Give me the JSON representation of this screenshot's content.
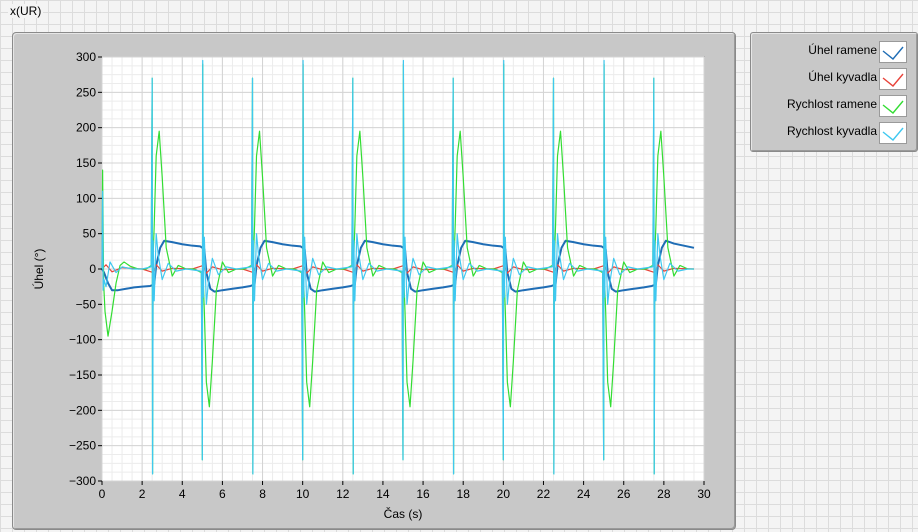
{
  "window": {
    "title": "x(UR)"
  },
  "chart_data": {
    "type": "line",
    "xlabel": "Čas (s)",
    "ylabel": "Úhel (°)",
    "xlim": [
      0,
      30
    ],
    "ylim": [
      -300,
      300
    ],
    "xticks": [
      0,
      2,
      4,
      6,
      8,
      10,
      12,
      14,
      16,
      18,
      20,
      22,
      24,
      26,
      28,
      30
    ],
    "yticks": [
      -300,
      -250,
      -200,
      -150,
      -100,
      -50,
      0,
      50,
      100,
      150,
      200,
      250,
      300
    ],
    "grid": true,
    "legend_position": "top-right",
    "series": [
      {
        "name": "Úhel ramene",
        "color": "#1f6db5",
        "x": [
          0,
          0.1,
          0.3,
          0.5,
          0.8,
          1.2,
          1.6,
          2.0,
          2.4,
          2.6,
          2.7,
          2.9,
          3.1,
          3.5,
          4.0,
          4.5,
          4.9,
          5.1,
          5.2,
          5.4,
          5.6,
          6.0,
          6.5,
          7.0,
          7.4,
          7.6,
          7.7,
          7.9,
          8.1,
          8.5,
          9.0,
          9.5,
          9.9,
          10.1,
          10.2,
          10.4,
          10.6,
          11.0,
          11.5,
          12.0,
          12.4,
          12.6,
          12.7,
          12.9,
          13.1,
          13.5,
          14.0,
          14.5,
          14.9,
          15.1,
          15.2,
          15.4,
          15.6,
          16.0,
          16.5,
          17.0,
          17.4,
          17.6,
          17.7,
          17.9,
          18.1,
          18.5,
          19.0,
          19.5,
          19.9,
          20.1,
          20.2,
          20.4,
          20.6,
          21.0,
          21.5,
          22.0,
          22.4,
          22.6,
          22.7,
          22.9,
          23.1,
          23.5,
          24.0,
          24.5,
          24.9,
          25.1,
          25.2,
          25.4,
          25.6,
          26.0,
          26.5,
          27.0,
          27.4,
          27.6,
          27.7,
          27.9,
          28.1,
          28.5,
          29.0,
          29.5
        ],
        "values": [
          0,
          -5,
          -20,
          -30,
          -30,
          -28,
          -26,
          -25,
          -24,
          -22,
          5,
          30,
          40,
          38,
          35,
          33,
          32,
          28,
          -5,
          -28,
          -32,
          -30,
          -28,
          -26,
          -24,
          -22,
          5,
          30,
          40,
          38,
          35,
          33,
          32,
          28,
          -5,
          -28,
          -32,
          -30,
          -28,
          -26,
          -24,
          -22,
          5,
          30,
          40,
          38,
          35,
          33,
          32,
          28,
          -5,
          -28,
          -32,
          -30,
          -28,
          -26,
          -24,
          -22,
          5,
          30,
          40,
          38,
          35,
          33,
          32,
          28,
          -5,
          -28,
          -32,
          -30,
          -28,
          -26,
          -24,
          -22,
          5,
          30,
          40,
          38,
          35,
          33,
          32,
          28,
          -5,
          -28,
          -32,
          -30,
          -28,
          -26,
          -24,
          -22,
          5,
          30,
          40,
          36,
          33,
          30
        ]
      },
      {
        "name": "Úhel kyvadla",
        "color": "#e8433a",
        "x": [
          0,
          0.2,
          0.5,
          1.0,
          2.0,
          2.55,
          2.7,
          3.0,
          3.5,
          4.5,
          5.05,
          5.2,
          5.5,
          6.0,
          7.0,
          7.55,
          7.7,
          8.0,
          8.5,
          9.5,
          10.05,
          10.2,
          10.5,
          11.0,
          12.0,
          12.55,
          12.7,
          13.0,
          13.5,
          14.5,
          15.05,
          15.2,
          15.5,
          16.0,
          17.0,
          17.55,
          17.7,
          18.0,
          18.5,
          19.5,
          20.05,
          20.2,
          20.5,
          21.0,
          22.0,
          22.55,
          22.7,
          23.0,
          23.5,
          24.5,
          25.05,
          25.2,
          25.5,
          26.0,
          27.0,
          27.55,
          27.7,
          28.0,
          28.5,
          29.5
        ],
        "values": [
          0,
          6,
          -4,
          2,
          0,
          -5,
          6,
          -3,
          1,
          0,
          5,
          -6,
          3,
          -1,
          0,
          -5,
          6,
          -3,
          1,
          0,
          5,
          -6,
          3,
          -1,
          0,
          -5,
          6,
          -3,
          1,
          0,
          5,
          -6,
          3,
          -1,
          0,
          -5,
          6,
          -3,
          1,
          0,
          5,
          -6,
          3,
          -1,
          0,
          -5,
          6,
          -3,
          1,
          0,
          5,
          -6,
          3,
          -1,
          0,
          -5,
          6,
          -3,
          1,
          0
        ]
      },
      {
        "name": "Rychlost ramene",
        "color": "#33dd33",
        "x": [
          0,
          0.03,
          0.08,
          0.15,
          0.3,
          0.5,
          0.7,
          0.9,
          1.1,
          1.4,
          1.8,
          2.2,
          2.45,
          2.5,
          2.52,
          2.55,
          2.6,
          2.7,
          2.85,
          3.0,
          3.2,
          3.5,
          3.8,
          4.2,
          4.6,
          4.95,
          5.0,
          5.02,
          5.05,
          5.1,
          5.2,
          5.35,
          5.5,
          5.7,
          6.0,
          6.3,
          6.7,
          7.1,
          7.45,
          7.5,
          7.52,
          7.55,
          7.6,
          7.7,
          7.85,
          8.0,
          8.2,
          8.5,
          8.8,
          9.2,
          9.6,
          9.95,
          10.0,
          10.02,
          10.05,
          10.1,
          10.2,
          10.35,
          10.5,
          10.7,
          11.0,
          11.3,
          11.7,
          12.1,
          12.45,
          12.5,
          12.52,
          12.55,
          12.6,
          12.7,
          12.85,
          13.0,
          13.2,
          13.5,
          13.8,
          14.2,
          14.6,
          14.95,
          15.0,
          15.02,
          15.05,
          15.1,
          15.2,
          15.35,
          15.5,
          15.7,
          16.0,
          16.3,
          16.7,
          17.1,
          17.45,
          17.5,
          17.52,
          17.55,
          17.6,
          17.7,
          17.85,
          18.0,
          18.2,
          18.5,
          18.8,
          19.2,
          19.6,
          19.95,
          20.0,
          20.02,
          20.05,
          20.1,
          20.2,
          20.35,
          20.5,
          20.7,
          21.0,
          21.3,
          21.7,
          22.1,
          22.45,
          22.5,
          22.52,
          22.55,
          22.6,
          22.7,
          22.85,
          23.0,
          23.2,
          23.5,
          23.8,
          24.2,
          24.6,
          24.95,
          25.0,
          25.02,
          25.05,
          25.1,
          25.2,
          25.35,
          25.5,
          25.7,
          26.0,
          26.3,
          26.7,
          27.1,
          27.45,
          27.5,
          27.52,
          27.55,
          27.6,
          27.7,
          27.85,
          28.0,
          28.2,
          28.5,
          28.8,
          29.2,
          29.5
        ],
        "values": [
          0,
          140,
          -20,
          -60,
          -95,
          -60,
          -20,
          5,
          10,
          4,
          0,
          0,
          5,
          270,
          -290,
          20,
          60,
          160,
          195,
          130,
          30,
          -10,
          5,
          0,
          0,
          -5,
          -270,
          290,
          -20,
          -60,
          -160,
          -195,
          -130,
          -30,
          10,
          -5,
          0,
          0,
          5,
          270,
          -290,
          20,
          60,
          160,
          195,
          130,
          30,
          -10,
          5,
          0,
          0,
          -5,
          -270,
          290,
          -20,
          -60,
          -160,
          -195,
          -130,
          -30,
          10,
          -5,
          0,
          0,
          5,
          270,
          -290,
          20,
          60,
          160,
          195,
          130,
          30,
          -10,
          5,
          0,
          0,
          -5,
          -270,
          290,
          -20,
          -60,
          -160,
          -195,
          -130,
          -30,
          10,
          -5,
          0,
          0,
          5,
          270,
          -290,
          20,
          60,
          160,
          195,
          130,
          30,
          -10,
          5,
          0,
          0,
          -5,
          -270,
          290,
          -20,
          -60,
          -160,
          -195,
          -130,
          -30,
          10,
          -5,
          0,
          0,
          5,
          270,
          -290,
          20,
          60,
          160,
          195,
          130,
          30,
          -10,
          5,
          0,
          0,
          -5,
          -270,
          290,
          -20,
          -60,
          -160,
          -195,
          -130,
          -30,
          10,
          -5,
          0,
          0,
          5,
          270,
          -290,
          20,
          60,
          160,
          195,
          130,
          30,
          -10,
          5,
          0,
          0
        ]
      },
      {
        "name": "Rychlost kyvadla",
        "color": "#3fc8f0",
        "x": [
          0,
          0.03,
          0.06,
          0.1,
          0.2,
          0.4,
          0.7,
          1.0,
          1.5,
          2.0,
          2.45,
          2.5,
          2.52,
          2.55,
          2.6,
          2.7,
          2.8,
          3.0,
          3.3,
          3.7,
          4.2,
          4.95,
          5.0,
          5.02,
          5.05,
          5.1,
          5.2,
          5.3,
          5.5,
          5.8,
          6.2,
          6.7,
          7.45,
          7.5,
          7.52,
          7.55,
          7.6,
          7.7,
          7.8,
          8.0,
          8.3,
          8.7,
          9.2,
          9.95,
          10.0,
          10.02,
          10.05,
          10.1,
          10.2,
          10.3,
          10.5,
          10.8,
          11.2,
          11.7,
          12.45,
          12.5,
          12.52,
          12.55,
          12.6,
          12.7,
          12.8,
          13.0,
          13.3,
          13.7,
          14.2,
          14.95,
          15.0,
          15.02,
          15.05,
          15.1,
          15.2,
          15.3,
          15.5,
          15.8,
          16.2,
          16.7,
          17.45,
          17.5,
          17.52,
          17.55,
          17.6,
          17.7,
          17.8,
          18.0,
          18.3,
          18.7,
          19.2,
          19.95,
          20.0,
          20.02,
          20.05,
          20.1,
          20.2,
          20.3,
          20.5,
          20.8,
          21.2,
          21.7,
          22.45,
          22.5,
          22.52,
          22.55,
          22.6,
          22.7,
          22.8,
          23.0,
          23.3,
          23.7,
          24.2,
          24.95,
          25.0,
          25.02,
          25.05,
          25.1,
          25.2,
          25.3,
          25.5,
          25.8,
          26.2,
          26.7,
          27.45,
          27.5,
          27.52,
          27.55,
          27.6,
          27.7,
          27.8,
          28.0,
          28.3,
          28.7,
          29.2,
          29.5
        ],
        "values": [
          0,
          110,
          -30,
          -15,
          -25,
          10,
          -5,
          3,
          0,
          0,
          3,
          270,
          -290,
          40,
          -45,
          50,
          20,
          -15,
          8,
          -3,
          0,
          -3,
          -270,
          295,
          -40,
          45,
          -50,
          -20,
          15,
          -8,
          3,
          0,
          3,
          270,
          -290,
          40,
          -45,
          50,
          20,
          -15,
          8,
          -3,
          0,
          -3,
          -270,
          295,
          -40,
          45,
          -50,
          -20,
          15,
          -8,
          3,
          0,
          3,
          270,
          -290,
          40,
          -45,
          50,
          20,
          -15,
          8,
          -3,
          0,
          -3,
          -270,
          295,
          -40,
          45,
          -50,
          -20,
          15,
          -8,
          3,
          0,
          3,
          270,
          -290,
          40,
          -45,
          50,
          20,
          -15,
          8,
          -3,
          0,
          -3,
          -270,
          295,
          -40,
          45,
          -50,
          -20,
          15,
          -8,
          3,
          0,
          3,
          270,
          -290,
          40,
          -45,
          50,
          20,
          -15,
          8,
          -3,
          0,
          -3,
          -270,
          295,
          -40,
          45,
          -50,
          -20,
          15,
          -8,
          3,
          0,
          3,
          270,
          -290,
          40,
          -45,
          50,
          20,
          -15,
          8,
          -3,
          0,
          0
        ]
      }
    ]
  }
}
